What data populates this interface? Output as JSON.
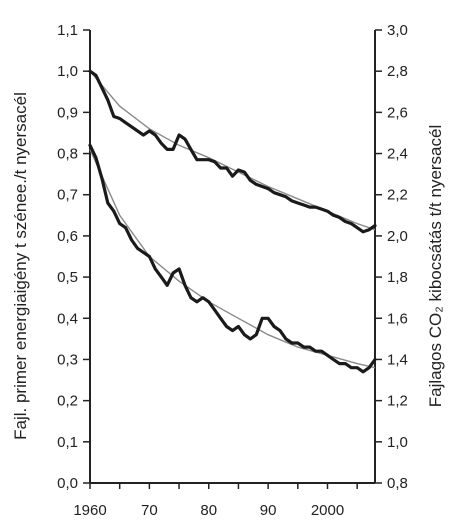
{
  "chart_data": {
    "type": "line",
    "title": "",
    "xlabel": "",
    "ylabel_left": "Fajl. primer energiaigény t szénee./t nyersacél",
    "ylabel_right": "Fajlagos CO₂ kibocsátás t/t nyersacél",
    "x_ticks": [
      "1960",
      "70",
      "80",
      "90",
      "2000"
    ],
    "x_tick_values": [
      1960,
      1970,
      1980,
      1990,
      2000
    ],
    "xlim": [
      1960,
      2008
    ],
    "y_left_ticks": [
      "0,0",
      "0,1",
      "0,2",
      "0,3",
      "0,4",
      "0,5",
      "0,6",
      "0,7",
      "0,8",
      "0,9",
      "1,0",
      "1,1"
    ],
    "y_left_tick_values": [
      0.0,
      0.1,
      0.2,
      0.3,
      0.4,
      0.5,
      0.6,
      0.7,
      0.8,
      0.9,
      1.0,
      1.1
    ],
    "ylim_left": [
      0.0,
      1.1
    ],
    "y_right_ticks": [
      "0,8",
      "1,0",
      "1,2",
      "1,4",
      "1,6",
      "1,8",
      "2,0",
      "2,2",
      "2,4",
      "2,6",
      "2,8",
      "3,0"
    ],
    "y_right_tick_values": [
      0.8,
      1.0,
      1.2,
      1.4,
      1.6,
      1.8,
      2.0,
      2.2,
      2.4,
      2.6,
      2.8,
      3.0
    ],
    "ylim_right": [
      0.8,
      3.0
    ],
    "series": [
      {
        "axis": "right",
        "x": [
          1960,
          1961,
          1962,
          1963,
          1964,
          1965,
          1966,
          1967,
          1968,
          1969,
          1970,
          1971,
          1972,
          1973,
          1974,
          1975,
          1976,
          1977,
          1978,
          1979,
          1980,
          1981,
          1982,
          1983,
          1984,
          1985,
          1986,
          1987,
          1988,
          1989,
          1990,
          1991,
          1992,
          1993,
          1994,
          1995,
          1996,
          1997,
          1998,
          1999,
          2000,
          2001,
          2002,
          2003,
          2004,
          2005,
          2006,
          2007,
          2008
        ],
        "values": [
          2.8,
          2.78,
          2.72,
          2.66,
          2.58,
          2.57,
          2.55,
          2.53,
          2.51,
          2.49,
          2.51,
          2.49,
          2.45,
          2.42,
          2.42,
          2.49,
          2.47,
          2.42,
          2.37,
          2.37,
          2.37,
          2.36,
          2.33,
          2.33,
          2.29,
          2.32,
          2.31,
          2.27,
          2.25,
          2.24,
          2.23,
          2.21,
          2.2,
          2.19,
          2.17,
          2.16,
          2.15,
          2.14,
          2.14,
          2.13,
          2.12,
          2.1,
          2.09,
          2.07,
          2.06,
          2.04,
          2.02,
          2.03,
          2.05
        ]
      },
      {
        "axis": "left",
        "x": [
          1960,
          1961,
          1962,
          1963,
          1964,
          1965,
          1966,
          1967,
          1968,
          1969,
          1970,
          1971,
          1972,
          1973,
          1974,
          1975,
          1976,
          1977,
          1978,
          1979,
          1980,
          1981,
          1982,
          1983,
          1984,
          1985,
          1986,
          1987,
          1988,
          1989,
          1990,
          1991,
          1992,
          1993,
          1994,
          1995,
          1996,
          1997,
          1998,
          1999,
          2000,
          2001,
          2002,
          2003,
          2004,
          2005,
          2006,
          2007,
          2008
        ],
        "values": [
          0.82,
          0.79,
          0.74,
          0.68,
          0.66,
          0.63,
          0.62,
          0.59,
          0.57,
          0.56,
          0.55,
          0.52,
          0.5,
          0.48,
          0.51,
          0.52,
          0.48,
          0.45,
          0.44,
          0.45,
          0.44,
          0.42,
          0.4,
          0.38,
          0.37,
          0.38,
          0.36,
          0.35,
          0.36,
          0.4,
          0.4,
          0.38,
          0.37,
          0.35,
          0.34,
          0.34,
          0.33,
          0.33,
          0.32,
          0.32,
          0.31,
          0.3,
          0.29,
          0.29,
          0.28,
          0.28,
          0.27,
          0.28,
          0.3
        ]
      }
    ],
    "trend_lines": [
      {
        "axis": "right",
        "x": [
          1960,
          1965,
          1970,
          1975,
          1980,
          1985,
          1990,
          1995,
          2000,
          2005,
          2008
        ],
        "values": [
          2.8,
          2.63,
          2.52,
          2.44,
          2.38,
          2.31,
          2.24,
          2.18,
          2.12,
          2.06,
          2.03
        ]
      },
      {
        "axis": "left",
        "x": [
          1960,
          1965,
          1970,
          1975,
          1980,
          1985,
          1990,
          1995,
          2000,
          2005,
          2008
        ],
        "values": [
          0.81,
          0.65,
          0.55,
          0.49,
          0.44,
          0.4,
          0.36,
          0.33,
          0.31,
          0.29,
          0.28
        ]
      }
    ],
    "grid": false,
    "legend": "none"
  }
}
